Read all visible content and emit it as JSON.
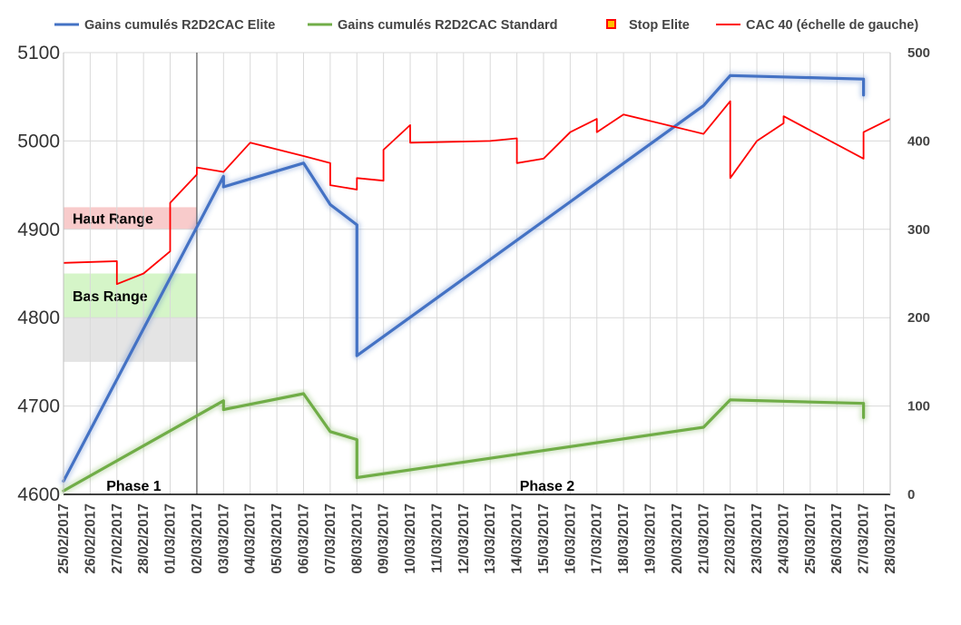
{
  "chart_data": {
    "type": "line",
    "title": "",
    "x_dates": [
      "25/02/2017",
      "26/02/2017",
      "27/02/2017",
      "28/02/2017",
      "01/03/2017",
      "02/03/2017",
      "03/03/2017",
      "04/03/2017",
      "05/03/2017",
      "06/03/2017",
      "07/03/2017",
      "08/03/2017",
      "09/03/2017",
      "10/03/2017",
      "11/03/2017",
      "12/03/2017",
      "13/03/2017",
      "14/03/2017",
      "15/03/2017",
      "16/03/2017",
      "17/03/2017",
      "18/03/2017",
      "19/03/2017",
      "20/03/2017",
      "21/03/2017",
      "22/03/2017",
      "23/03/2017",
      "24/03/2017",
      "25/03/2017",
      "26/03/2017",
      "27/03/2017",
      "28/03/2017"
    ],
    "left_axis": {
      "ylim": [
        4600,
        5100
      ],
      "ticks": [
        "4600",
        "4700",
        "4800",
        "4900",
        "5000",
        "5100"
      ]
    },
    "right_axis": {
      "ylim": [
        0,
        500
      ],
      "ticks": [
        "0",
        "100",
        "200",
        "300",
        "400",
        "500"
      ]
    },
    "grid": true,
    "legend_position": "top",
    "series": [
      {
        "name": "Gains cumulés R2D2CAC Elite",
        "axis": "right",
        "color": "#4472C4",
        "points": [
          [
            "25/02/2017",
            15
          ],
          [
            "03/03/2017",
            360
          ],
          [
            "03/03/2017",
            348
          ],
          [
            "06/03/2017",
            375
          ],
          [
            "07/03/2017",
            328
          ],
          [
            "08/03/2017",
            305
          ],
          [
            "08/03/2017",
            258
          ],
          [
            "08/03/2017",
            157
          ],
          [
            "21/03/2017",
            440
          ],
          [
            "22/03/2017",
            474
          ],
          [
            "27/03/2017",
            470
          ],
          [
            "27/03/2017",
            452
          ]
        ]
      },
      {
        "name": "Gains cumulés R2D2CAC Standard",
        "axis": "right",
        "color": "#70AD47",
        "points": [
          [
            "25/02/2017",
            4
          ],
          [
            "03/03/2017",
            106
          ],
          [
            "03/03/2017",
            96
          ],
          [
            "06/03/2017",
            114
          ],
          [
            "07/03/2017",
            71
          ],
          [
            "08/03/2017",
            62
          ],
          [
            "08/03/2017",
            45
          ],
          [
            "08/03/2017",
            19
          ],
          [
            "21/03/2017",
            76
          ],
          [
            "22/03/2017",
            107
          ],
          [
            "27/03/2017",
            103
          ],
          [
            "27/03/2017",
            87
          ]
        ]
      },
      {
        "name": "Stop Elite",
        "axis": "right",
        "color": "#FFC000",
        "border": "#FF0000",
        "points": []
      },
      {
        "name": "CAC 40 (échelle de gauche)",
        "axis": "left",
        "color": "#FF0000",
        "points": [
          [
            "25/02/2017",
            4862
          ],
          [
            "27/02/2017",
            4864
          ],
          [
            "27/02/2017",
            4838
          ],
          [
            "28/02/2017",
            4850
          ],
          [
            "01/03/2017",
            4875
          ],
          [
            "01/03/2017",
            4930
          ],
          [
            "02/03/2017",
            4962
          ],
          [
            "02/03/2017",
            4970
          ],
          [
            "03/03/2017",
            4965
          ],
          [
            "04/03/2017",
            4998
          ],
          [
            "06/03/2017",
            4983
          ],
          [
            "07/03/2017",
            4975
          ],
          [
            "07/03/2017",
            4950
          ],
          [
            "08/03/2017",
            4945
          ],
          [
            "08/03/2017",
            4958
          ],
          [
            "09/03/2017",
            4955
          ],
          [
            "09/03/2017",
            4990
          ],
          [
            "10/03/2017",
            5018
          ],
          [
            "10/03/2017",
            4998
          ],
          [
            "13/03/2017",
            5000
          ],
          [
            "14/03/2017",
            5003
          ],
          [
            "14/03/2017",
            4975
          ],
          [
            "15/03/2017",
            4980
          ],
          [
            "16/03/2017",
            5010
          ],
          [
            "17/03/2017",
            5025
          ],
          [
            "17/03/2017",
            5010
          ],
          [
            "18/03/2017",
            5030
          ],
          [
            "21/03/2017",
            5008
          ],
          [
            "22/03/2017",
            5045
          ],
          [
            "22/03/2017",
            4985
          ],
          [
            "22/03/2017",
            4958
          ],
          [
            "23/03/2017",
            5000
          ],
          [
            "24/03/2017",
            5020
          ],
          [
            "24/03/2017",
            5028
          ],
          [
            "27/03/2017",
            4980
          ],
          [
            "27/03/2017",
            5010
          ],
          [
            "28/03/2017",
            5025
          ]
        ]
      }
    ],
    "bands": [
      {
        "label": "Haut Range",
        "range": [
          4900,
          4925
        ],
        "color": "#F8CBCB"
      },
      {
        "label": "Bas Range",
        "range": [
          4800,
          4850
        ],
        "color": "#D5F5C8"
      },
      {
        "label": "",
        "range": [
          4750,
          4800
        ],
        "color": "#E4E4E4"
      }
    ],
    "phases": [
      {
        "label": "Phase 1",
        "from": "25/02/2017",
        "to": "02/03/2017"
      },
      {
        "label": "Phase 2",
        "from": "02/03/2017",
        "to": "28/03/2017"
      }
    ],
    "divider_date": "02/03/2017"
  }
}
